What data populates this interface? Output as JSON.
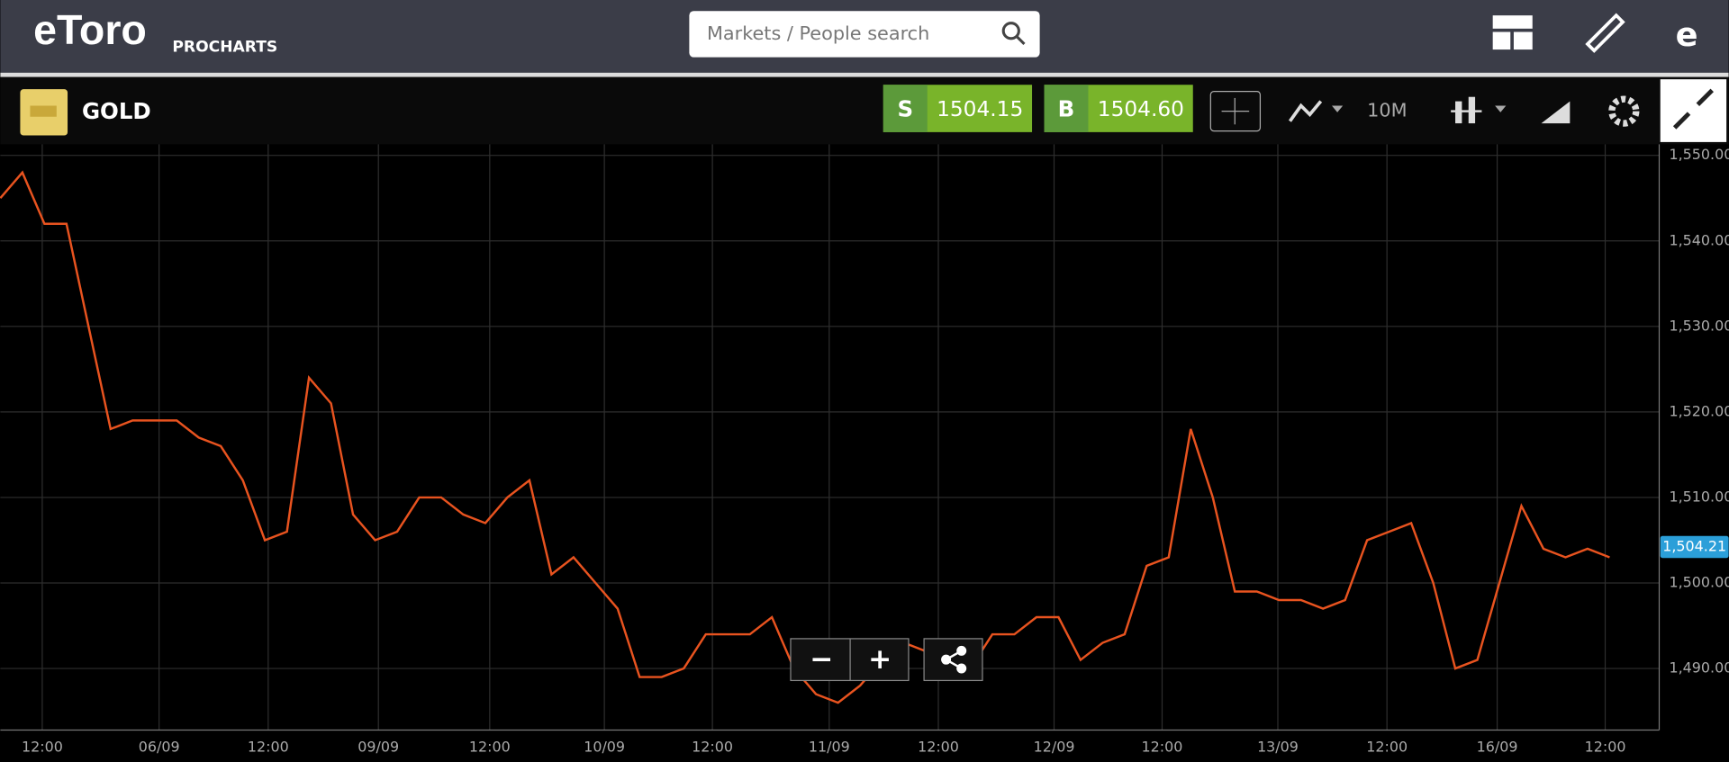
{
  "header": {
    "logo": "eToro",
    "subtitle": "PROCHARTS",
    "search_placeholder": "Markets / People search"
  },
  "toolbar": {
    "instrument": "GOLD",
    "sell": {
      "label": "S",
      "price": "1504.15"
    },
    "buy": {
      "label": "B",
      "price": "1504.60"
    },
    "timeframe": "10M"
  },
  "chart_data": {
    "type": "line",
    "x": [
      0,
      1,
      2,
      3,
      4,
      5,
      6,
      7,
      8,
      9,
      10,
      11,
      12,
      13,
      14,
      15,
      16,
      17,
      18,
      19,
      20,
      21,
      22,
      23,
      24,
      25,
      26,
      27,
      28,
      29,
      30,
      31,
      32,
      33,
      34,
      35,
      36,
      37,
      38,
      39,
      40,
      41,
      42,
      43,
      44,
      45,
      46,
      47,
      48,
      49,
      50,
      51,
      52,
      53,
      54,
      55,
      56,
      57,
      58,
      59,
      60,
      61,
      62,
      63,
      64,
      65,
      66,
      67,
      68,
      69,
      70,
      71,
      72,
      73
    ],
    "series": [
      {
        "name": "GOLD",
        "color": "#e8531f",
        "values": [
          1545,
          1548,
          1542,
          1542,
          1530,
          1518,
          1519,
          1519,
          1519,
          1517,
          1516,
          1512,
          1505,
          1506,
          1524,
          1521,
          1508,
          1505,
          1506,
          1510,
          1510,
          1508,
          1507,
          1510,
          1512,
          1501,
          1503,
          1500,
          1497,
          1489,
          1489,
          1490,
          1494,
          1494,
          1494,
          1496,
          1490,
          1487,
          1486,
          1488,
          1491,
          1493,
          1492,
          1491,
          1490,
          1494,
          1494,
          1496,
          1496,
          1491,
          1493,
          1494,
          1502,
          1503,
          1518,
          1510,
          1499,
          1499,
          1498,
          1498,
          1497,
          1498,
          1505,
          1506,
          1507,
          1500,
          1490,
          1491,
          1500,
          1509,
          1504,
          1503,
          1504,
          1503
        ]
      }
    ],
    "xlim": [
      0,
      75.25
    ],
    "xticks": [
      {
        "value": 1.9,
        "label": "12:00"
      },
      {
        "value": 7.2,
        "label": "06/09"
      },
      {
        "value": 12.15,
        "label": "12:00"
      },
      {
        "value": 17.15,
        "label": "09/09"
      },
      {
        "value": 22.2,
        "label": "12:00"
      },
      {
        "value": 27.4,
        "label": "10/09"
      },
      {
        "value": 32.3,
        "label": "12:00"
      },
      {
        "value": 37.6,
        "label": "11/09"
      },
      {
        "value": 42.55,
        "label": "12:00"
      },
      {
        "value": 47.8,
        "label": "12/09"
      },
      {
        "value": 52.7,
        "label": "12:00"
      },
      {
        "value": 57.95,
        "label": "13/09"
      },
      {
        "value": 62.9,
        "label": "12:00"
      },
      {
        "value": 67.9,
        "label": "16/09"
      },
      {
        "value": 72.8,
        "label": "12:00"
      }
    ],
    "ylim": [
      1482.8,
      1551.3
    ],
    "yticks": [
      {
        "value": 1490,
        "label": "1,490.00"
      },
      {
        "value": 1500,
        "label": "1,500.00"
      },
      {
        "value": 1510,
        "label": "1,510.00"
      },
      {
        "value": 1520,
        "label": "1,520.00"
      },
      {
        "value": 1530,
        "label": "1,530.00"
      },
      {
        "value": 1540,
        "label": "1,540.00"
      },
      {
        "value": 1550,
        "label": "1,550.00"
      }
    ],
    "grid": true,
    "last_price": {
      "value": 1504.21,
      "label": "1,504.21"
    }
  }
}
